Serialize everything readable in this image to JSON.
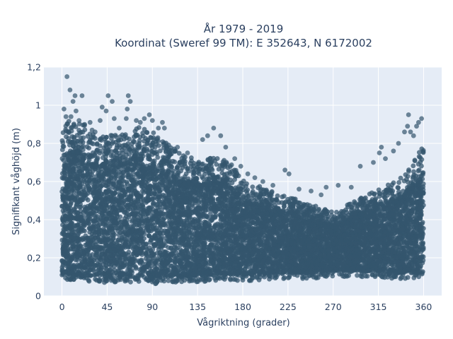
{
  "chart_data": {
    "type": "scatter",
    "title_line1": "År 1979 - 2019",
    "title_line2": "Koordinat (Sweref 99 TM): E 352643, N 6172002",
    "xlabel": "Vågriktning (grader)",
    "ylabel": "Signifikant våghöjd (m)",
    "xlim": [
      -18,
      378
    ],
    "ylim": [
      0,
      1.2
    ],
    "xticks": [
      0,
      45,
      90,
      135,
      180,
      225,
      270,
      315,
      360
    ],
    "xtick_labels": [
      "0",
      "45",
      "90",
      "135",
      "180",
      "225",
      "270",
      "315",
      "360"
    ],
    "yticks": [
      0,
      0.2,
      0.4,
      0.6,
      0.8,
      1,
      1.2
    ],
    "ytick_labels": [
      "0",
      "0,2",
      "0,4",
      "0,6",
      "0,8",
      "1",
      "1,2"
    ],
    "grid": true,
    "marker_color": "#34566e",
    "plot_bg": "#e5ecf6",
    "envelope": {
      "x": [
        0,
        15,
        30,
        45,
        60,
        75,
        90,
        105,
        120,
        135,
        150,
        165,
        180,
        195,
        210,
        225,
        240,
        255,
        270,
        285,
        300,
        315,
        330,
        345,
        360
      ],
      "y_max": [
        0.9,
        0.94,
        0.86,
        0.84,
        0.86,
        0.9,
        0.86,
        0.8,
        0.74,
        0.72,
        0.74,
        0.72,
        0.62,
        0.58,
        0.55,
        0.52,
        0.5,
        0.47,
        0.44,
        0.48,
        0.52,
        0.56,
        0.6,
        0.66,
        0.8
      ],
      "y_min": [
        0.08,
        0.08,
        0.07,
        0.07,
        0.07,
        0.07,
        0.06,
        0.07,
        0.07,
        0.07,
        0.08,
        0.08,
        0.08,
        0.08,
        0.09,
        0.09,
        0.09,
        0.09,
        0.1,
        0.1,
        0.1,
        0.1,
        0.09,
        0.09,
        0.09
      ]
    },
    "outliers": [
      {
        "x": 2,
        "y": 0.98
      },
      {
        "x": 4,
        "y": 0.94
      },
      {
        "x": 5,
        "y": 1.15
      },
      {
        "x": 6,
        "y": 0.86
      },
      {
        "x": 8,
        "y": 1.08
      },
      {
        "x": 9,
        "y": 0.94
      },
      {
        "x": 11,
        "y": 1.02
      },
      {
        "x": 13,
        "y": 1.05
      },
      {
        "x": 14,
        "y": 0.97
      },
      {
        "x": 17,
        "y": 0.92
      },
      {
        "x": 20,
        "y": 1.05
      },
      {
        "x": 28,
        "y": 0.91
      },
      {
        "x": 30,
        "y": 0.87
      },
      {
        "x": 33,
        "y": 0.86
      },
      {
        "x": 38,
        "y": 0.92
      },
      {
        "x": 40,
        "y": 0.99
      },
      {
        "x": 44,
        "y": 0.97
      },
      {
        "x": 46,
        "y": 1.05
      },
      {
        "x": 50,
        "y": 1.02
      },
      {
        "x": 52,
        "y": 0.93
      },
      {
        "x": 57,
        "y": 0.88
      },
      {
        "x": 64,
        "y": 0.93
      },
      {
        "x": 65,
        "y": 0.98
      },
      {
        "x": 66,
        "y": 1.05
      },
      {
        "x": 68,
        "y": 1.02
      },
      {
        "x": 74,
        "y": 0.92
      },
      {
        "x": 78,
        "y": 0.91
      },
      {
        "x": 82,
        "y": 0.93
      },
      {
        "x": 87,
        "y": 0.95
      },
      {
        "x": 90,
        "y": 0.92
      },
      {
        "x": 96,
        "y": 0.88
      },
      {
        "x": 100,
        "y": 0.91
      },
      {
        "x": 102,
        "y": 0.88
      },
      {
        "x": 115,
        "y": 0.78
      },
      {
        "x": 125,
        "y": 0.75
      },
      {
        "x": 140,
        "y": 0.82
      },
      {
        "x": 145,
        "y": 0.84
      },
      {
        "x": 151,
        "y": 0.88
      },
      {
        "x": 158,
        "y": 0.84
      },
      {
        "x": 163,
        "y": 0.78
      },
      {
        "x": 172,
        "y": 0.72
      },
      {
        "x": 178,
        "y": 0.68
      },
      {
        "x": 185,
        "y": 0.64
      },
      {
        "x": 192,
        "y": 0.62
      },
      {
        "x": 200,
        "y": 0.6
      },
      {
        "x": 210,
        "y": 0.58
      },
      {
        "x": 222,
        "y": 0.66
      },
      {
        "x": 226,
        "y": 0.64
      },
      {
        "x": 236,
        "y": 0.56
      },
      {
        "x": 248,
        "y": 0.55
      },
      {
        "x": 258,
        "y": 0.53
      },
      {
        "x": 263,
        "y": 0.57
      },
      {
        "x": 275,
        "y": 0.58
      },
      {
        "x": 288,
        "y": 0.57
      },
      {
        "x": 297,
        "y": 0.68
      },
      {
        "x": 310,
        "y": 0.7
      },
      {
        "x": 316,
        "y": 0.75
      },
      {
        "x": 318,
        "y": 0.78
      },
      {
        "x": 322,
        "y": 0.72
      },
      {
        "x": 330,
        "y": 0.76
      },
      {
        "x": 335,
        "y": 0.8
      },
      {
        "x": 341,
        "y": 0.86
      },
      {
        "x": 344,
        "y": 0.89
      },
      {
        "x": 347,
        "y": 0.86
      },
      {
        "x": 350,
        "y": 0.84
      },
      {
        "x": 353,
        "y": 0.89
      },
      {
        "x": 355,
        "y": 0.91
      },
      {
        "x": 358,
        "y": 0.93
      },
      {
        "x": 345,
        "y": 0.95
      }
    ]
  }
}
